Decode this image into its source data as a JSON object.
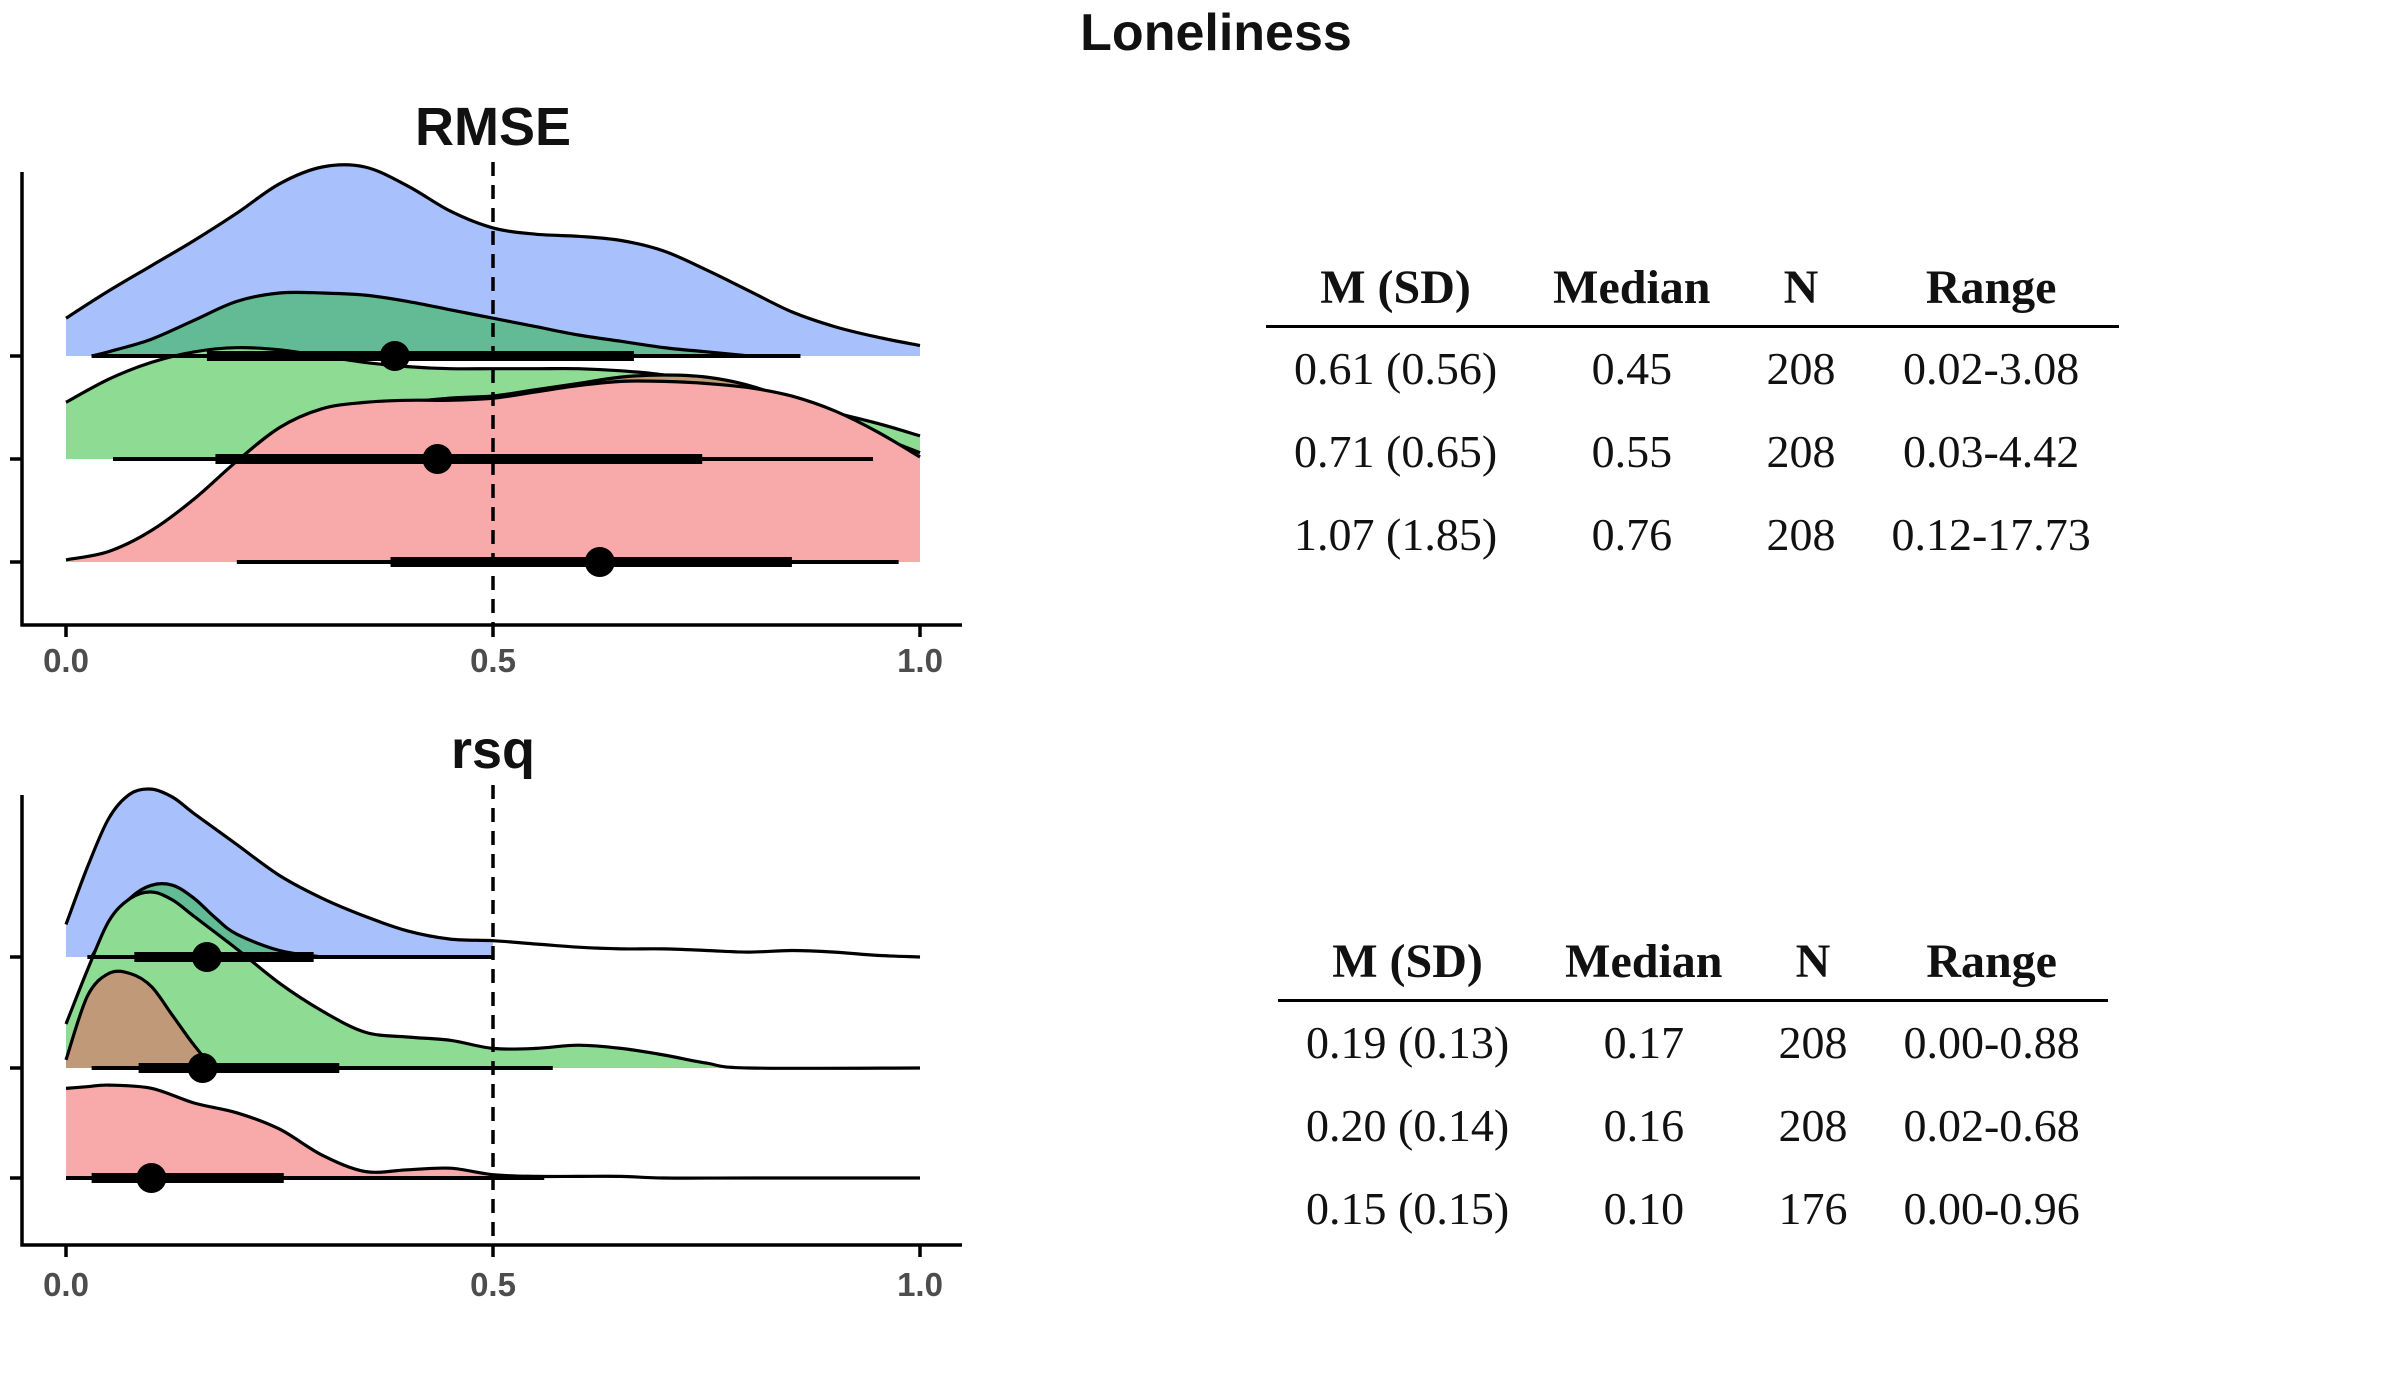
{
  "figure_title": "Loneliness",
  "colors": {
    "blue": "#a8c0fc",
    "darkgreen": "#62bb94",
    "lightgreen": "#8edb93",
    "brown": "#c09a78",
    "pink": "#f8aaaa"
  },
  "chart_data": [
    {
      "type": "area",
      "subtype": "ridgeline-density-with-interval",
      "title": "RMSE",
      "xlabel": "",
      "ylabel": "",
      "xlim": [
        0,
        1
      ],
      "x_ticks": [
        "0.0",
        "0.5",
        "1.0"
      ],
      "reference_line_x": 0.5,
      "series": [
        {
          "color": "blue",
          "row": 0,
          "density": [
            [
              0,
              0.18
            ],
            [
              0.05,
              0.31
            ],
            [
              0.1,
              0.43
            ],
            [
              0.15,
              0.55
            ],
            [
              0.2,
              0.68
            ],
            [
              0.25,
              0.82
            ],
            [
              0.3,
              0.9
            ],
            [
              0.35,
              0.9
            ],
            [
              0.4,
              0.81
            ],
            [
              0.45,
              0.69
            ],
            [
              0.5,
              0.61
            ],
            [
              0.55,
              0.58
            ],
            [
              0.6,
              0.57
            ],
            [
              0.65,
              0.55
            ],
            [
              0.7,
              0.5
            ],
            [
              0.75,
              0.41
            ],
            [
              0.8,
              0.31
            ],
            [
              0.85,
              0.21
            ],
            [
              0.9,
              0.14
            ],
            [
              0.95,
              0.09
            ],
            [
              1,
              0.05
            ]
          ]
        },
        {
          "color": "darkgreen",
          "row": 0,
          "point": 0.385,
          "interval_thick": [
            0.165,
            0.665
          ],
          "interval_thin": [
            0.03,
            0.86
          ],
          "density": [
            [
              0.03,
              0
            ],
            [
              0.05,
              0.02
            ],
            [
              0.1,
              0.08
            ],
            [
              0.15,
              0.17
            ],
            [
              0.2,
              0.26
            ],
            [
              0.25,
              0.3
            ],
            [
              0.3,
              0.3
            ],
            [
              0.35,
              0.29
            ],
            [
              0.4,
              0.26
            ],
            [
              0.45,
              0.22
            ],
            [
              0.5,
              0.18
            ],
            [
              0.55,
              0.14
            ],
            [
              0.6,
              0.1
            ],
            [
              0.65,
              0.07
            ],
            [
              0.7,
              0.04
            ],
            [
              0.75,
              0.02
            ],
            [
              0.8,
              0
            ]
          ]
        },
        {
          "color": "lightgreen",
          "row": 1,
          "point": 0.435,
          "interval_thick": [
            0.175,
            0.745
          ],
          "interval_thin": [
            0.055,
            0.945
          ],
          "density": [
            [
              0,
              0.27
            ],
            [
              0.05,
              0.38
            ],
            [
              0.1,
              0.46
            ],
            [
              0.15,
              0.51
            ],
            [
              0.2,
              0.53
            ],
            [
              0.25,
              0.52
            ],
            [
              0.3,
              0.49
            ],
            [
              0.35,
              0.46
            ],
            [
              0.4,
              0.44
            ],
            [
              0.45,
              0.43
            ],
            [
              0.5,
              0.43
            ],
            [
              0.55,
              0.43
            ],
            [
              0.6,
              0.43
            ],
            [
              0.65,
              0.42
            ],
            [
              0.7,
              0.4
            ],
            [
              0.75,
              0.36
            ],
            [
              0.8,
              0.32
            ],
            [
              0.85,
              0.27
            ],
            [
              0.9,
              0.22
            ],
            [
              0.95,
              0.17
            ],
            [
              1,
              0.11
            ]
          ]
        },
        {
          "color": "brown",
          "row": 1,
          "density": [
            [
              0.3,
              0
            ],
            [
              0.35,
              0.16
            ],
            [
              0.4,
              0.26
            ],
            [
              0.45,
              0.29
            ],
            [
              0.5,
              0.3
            ],
            [
              0.55,
              0.33
            ],
            [
              0.6,
              0.36
            ],
            [
              0.65,
              0.39
            ],
            [
              0.7,
              0.4
            ],
            [
              0.75,
              0.39
            ],
            [
              0.8,
              0.35
            ],
            [
              0.85,
              0.28
            ],
            [
              0.9,
              0.2
            ],
            [
              0.95,
              0.11
            ],
            [
              1,
              0.03
            ]
          ]
        },
        {
          "color": "pink",
          "row": 2,
          "point": 0.625,
          "interval_thick": [
            0.38,
            0.85
          ],
          "interval_thin": [
            0.2,
            0.975
          ],
          "density": [
            [
              0,
              0.01
            ],
            [
              0.05,
              0.05
            ],
            [
              0.1,
              0.15
            ],
            [
              0.15,
              0.3
            ],
            [
              0.2,
              0.48
            ],
            [
              0.25,
              0.64
            ],
            [
              0.3,
              0.73
            ],
            [
              0.35,
              0.76
            ],
            [
              0.4,
              0.77
            ],
            [
              0.45,
              0.77
            ],
            [
              0.5,
              0.78
            ],
            [
              0.55,
              0.81
            ],
            [
              0.6,
              0.84
            ],
            [
              0.65,
              0.86
            ],
            [
              0.7,
              0.86
            ],
            [
              0.75,
              0.85
            ],
            [
              0.8,
              0.83
            ],
            [
              0.85,
              0.79
            ],
            [
              0.9,
              0.72
            ],
            [
              0.95,
              0.62
            ],
            [
              1,
              0.5
            ]
          ]
        }
      ]
    },
    {
      "type": "area",
      "subtype": "ridgeline-density-with-interval",
      "title": "rsq",
      "xlabel": "",
      "ylabel": "",
      "xlim": [
        0,
        1
      ],
      "x_ticks": [
        "0.0",
        "0.5",
        "1.0"
      ],
      "reference_line_x": 0.5,
      "series": [
        {
          "color": "blue",
          "row": 0,
          "clip_at": 0.5,
          "density": [
            [
              0,
              0.2
            ],
            [
              0.025,
              0.55
            ],
            [
              0.05,
              0.85
            ],
            [
              0.075,
              1.0
            ],
            [
              0.1,
              1.03
            ],
            [
              0.125,
              0.98
            ],
            [
              0.15,
              0.88
            ],
            [
              0.2,
              0.69
            ],
            [
              0.25,
              0.5
            ],
            [
              0.3,
              0.36
            ],
            [
              0.35,
              0.25
            ],
            [
              0.4,
              0.16
            ],
            [
              0.45,
              0.11
            ],
            [
              0.5,
              0.1
            ],
            [
              0.55,
              0.08
            ],
            [
              0.6,
              0.06
            ],
            [
              0.65,
              0.05
            ],
            [
              0.7,
              0.05
            ],
            [
              0.75,
              0.04
            ],
            [
              0.8,
              0.03
            ],
            [
              0.85,
              0.04
            ],
            [
              0.9,
              0.03
            ],
            [
              0.95,
              0.01
            ],
            [
              1,
              0
            ]
          ]
        },
        {
          "color": "darkgreen",
          "row": 0,
          "point": 0.165,
          "interval_thick": [
            0.08,
            0.29
          ],
          "interval_thin": [
            0.025,
            0.5
          ],
          "density": [
            [
              0.03,
              0
            ],
            [
              0.05,
              0.18
            ],
            [
              0.075,
              0.36
            ],
            [
              0.1,
              0.44
            ],
            [
              0.125,
              0.44
            ],
            [
              0.15,
              0.36
            ],
            [
              0.175,
              0.24
            ],
            [
              0.2,
              0.14
            ],
            [
              0.25,
              0.04
            ],
            [
              0.3,
              0
            ]
          ]
        },
        {
          "color": "lightgreen",
          "row": 1,
          "point": 0.16,
          "interval_thick": [
            0.085,
            0.32
          ],
          "interval_thin": [
            0.03,
            0.57
          ],
          "density": [
            [
              0,
              0.27
            ],
            [
              0.025,
              0.6
            ],
            [
              0.05,
              0.9
            ],
            [
              0.075,
              1.04
            ],
            [
              0.1,
              1.08
            ],
            [
              0.125,
              1.03
            ],
            [
              0.15,
              0.93
            ],
            [
              0.2,
              0.73
            ],
            [
              0.25,
              0.52
            ],
            [
              0.3,
              0.35
            ],
            [
              0.35,
              0.22
            ],
            [
              0.4,
              0.19
            ],
            [
              0.45,
              0.17
            ],
            [
              0.5,
              0.12
            ],
            [
              0.55,
              0.12
            ],
            [
              0.6,
              0.14
            ],
            [
              0.65,
              0.12
            ],
            [
              0.7,
              0.08
            ],
            [
              0.75,
              0.03
            ],
            [
              0.8,
              0
            ],
            [
              1,
              0
            ]
          ]
        },
        {
          "color": "brown",
          "row": 1,
          "density": [
            [
              0,
              0.05
            ],
            [
              0.025,
              0.44
            ],
            [
              0.05,
              0.58
            ],
            [
              0.075,
              0.58
            ],
            [
              0.1,
              0.5
            ],
            [
              0.125,
              0.32
            ],
            [
              0.15,
              0.14
            ],
            [
              0.175,
              0
            ],
            [
              0.2,
              0
            ]
          ]
        },
        {
          "color": "pink",
          "row": 2,
          "point": 0.1,
          "interval_thick": [
            0.03,
            0.255
          ],
          "interval_thin": [
            0,
            0.56
          ],
          "density": [
            [
              0,
              0.55
            ],
            [
              0.025,
              0.56
            ],
            [
              0.05,
              0.57
            ],
            [
              0.1,
              0.55
            ],
            [
              0.15,
              0.46
            ],
            [
              0.2,
              0.4
            ],
            [
              0.25,
              0.3
            ],
            [
              0.3,
              0.14
            ],
            [
              0.35,
              0.04
            ],
            [
              0.4,
              0.05
            ],
            [
              0.45,
              0.06
            ],
            [
              0.5,
              0.02
            ],
            [
              0.55,
              0.01
            ],
            [
              0.6,
              0.01
            ],
            [
              0.65,
              0.01
            ],
            [
              0.7,
              0
            ],
            [
              0.8,
              0
            ],
            [
              1,
              0
            ]
          ]
        }
      ]
    }
  ],
  "tables": [
    {
      "headers": [
        "M (SD)",
        "Median",
        "N",
        "Range"
      ],
      "rows": [
        [
          "0.61 (0.56)",
          "0.45",
          "208",
          "0.02-3.08"
        ],
        [
          "0.71 (0.65)",
          "0.55",
          "208",
          "0.03-4.42"
        ],
        [
          "1.07 (1.85)",
          "0.76",
          "208",
          "0.12-17.73"
        ]
      ]
    },
    {
      "headers": [
        "M (SD)",
        "Median",
        "N",
        "Range"
      ],
      "rows": [
        [
          "0.19 (0.13)",
          "0.17",
          "208",
          "0.00-0.88"
        ],
        [
          "0.20 (0.14)",
          "0.16",
          "208",
          "0.02-0.68"
        ],
        [
          "0.15 (0.15)",
          "0.10",
          "176",
          "0.00-0.96"
        ]
      ]
    }
  ]
}
